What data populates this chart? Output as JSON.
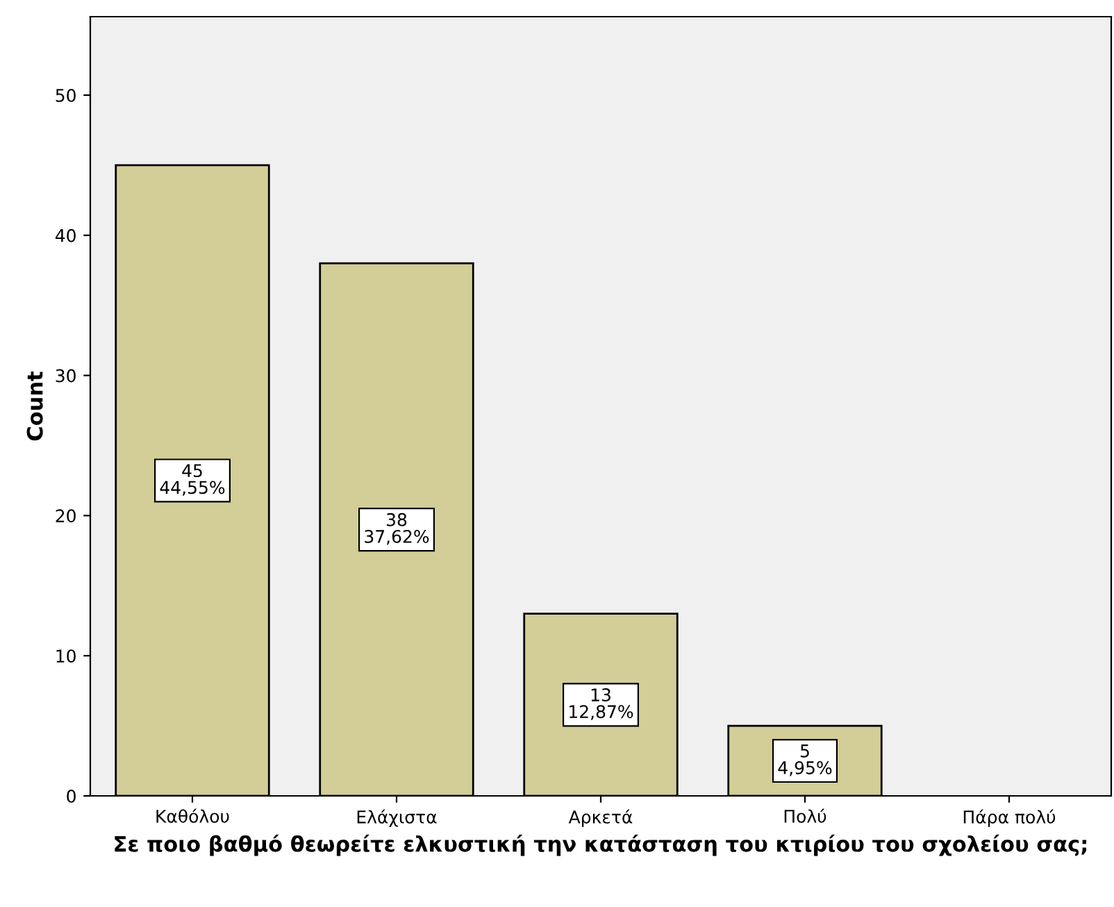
{
  "chart_data": {
    "type": "bar",
    "xlabel": "Σε ποιο βαθμό θεωρείτε ελκυστική την κατάσταση του κτιρίου του σχολείου σας;",
    "ylabel": "Count",
    "categories": [
      "Καθόλου",
      "Ελάχιστα",
      "Αρκετά",
      "Πολύ",
      "Πάρα πολύ"
    ],
    "values": [
      45,
      38,
      13,
      5,
      0
    ],
    "value_labels": [
      "45\n44,55%",
      "38\n37,62%",
      "13\n12,87%",
      "5\n4,95%",
      null
    ],
    "color": "#d3ce97",
    "ylim": [
      0,
      55.6
    ],
    "yticks": [
      0,
      10,
      20,
      30,
      40,
      50
    ],
    "grid": false,
    "legend": false
  }
}
